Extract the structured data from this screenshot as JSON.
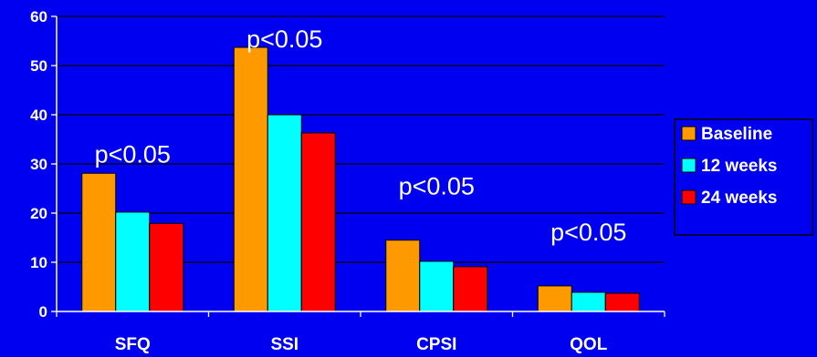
{
  "chart_data": {
    "type": "bar",
    "categories": [
      "SFQ",
      "SSI",
      "CPSI",
      "QOL"
    ],
    "series": [
      {
        "name": "Baseline",
        "values": [
          28.1,
          53.7,
          14.5,
          5.2
        ],
        "color": "#ff9900"
      },
      {
        "name": "12 weeks",
        "values": [
          20.2,
          40.0,
          10.2,
          3.9
        ],
        "color": "#00ffff"
      },
      {
        "name": "24 weeks",
        "values": [
          17.9,
          36.3,
          9.1,
          3.7
        ],
        "color": "#ff0000"
      }
    ],
    "ylim": [
      0,
      60
    ],
    "yticks": [
      0,
      10,
      20,
      30,
      40,
      50,
      60
    ],
    "grid": true,
    "legend": "right",
    "annotations": [
      {
        "category": "SFQ",
        "text": "p<0.05"
      },
      {
        "category": "SSI",
        "text": "p<0.05"
      },
      {
        "category": "CPSI",
        "text": "p<0.05"
      },
      {
        "category": "QOL",
        "text": "p<0.05"
      }
    ],
    "background_color": "#0000f0",
    "axis_color": "#ffffff"
  }
}
